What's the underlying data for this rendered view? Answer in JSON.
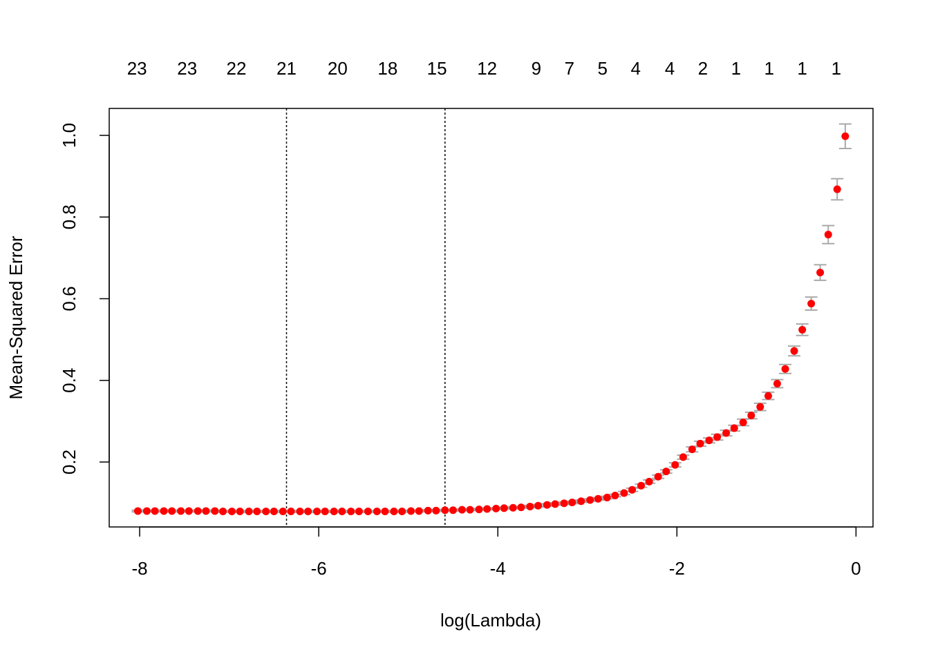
{
  "chart_data": {
    "type": "errorbar_scatter",
    "xlabel": "log(Lambda)",
    "ylabel": "Mean-Squared Error",
    "xlim": [
      -8.34,
      0.19
    ],
    "ylim": [
      0.041,
      1.066
    ],
    "xticks": [
      -8,
      -6,
      -4,
      -2,
      0
    ],
    "yticks": [
      0.2,
      0.4,
      0.6,
      0.8,
      {
        "value": 1,
        "label": "1.0"
      }
    ],
    "top_ticks": [
      {
        "value": -8.03,
        "label": "23"
      },
      {
        "value": -7.47,
        "label": "23"
      },
      {
        "value": -6.92,
        "label": "22"
      },
      {
        "value": -6.36,
        "label": "21"
      },
      {
        "value": -5.79,
        "label": "20"
      },
      {
        "value": -5.23,
        "label": "18"
      },
      {
        "value": -4.68,
        "label": "15"
      },
      {
        "value": -4.12,
        "label": "12"
      },
      {
        "value": -3.57,
        "label": "9"
      },
      {
        "value": -3.2,
        "label": "7"
      },
      {
        "value": -2.83,
        "label": "5"
      },
      {
        "value": -2.46,
        "label": "4"
      },
      {
        "value": -2.08,
        "label": "4"
      },
      {
        "value": -1.71,
        "label": "2"
      },
      {
        "value": -1.34,
        "label": "1"
      },
      {
        "value": -0.97,
        "label": "1"
      },
      {
        "value": -0.6,
        "label": "1"
      },
      {
        "value": -0.22,
        "label": "1"
      }
    ],
    "vlines": [
      -6.36,
      -4.59
    ],
    "color": "#ff0000",
    "error_color": "#a9a9a9",
    "x": [
      -8.02,
      -7.92,
      -7.83,
      -7.73,
      -7.64,
      -7.54,
      -7.45,
      -7.35,
      -7.26,
      -7.16,
      -7.07,
      -6.97,
      -6.88,
      -6.78,
      -6.69,
      -6.59,
      -6.5,
      -6.4,
      -6.31,
      -6.21,
      -6.12,
      -6.02,
      -5.93,
      -5.83,
      -5.74,
      -5.64,
      -5.55,
      -5.45,
      -5.35,
      -5.26,
      -5.16,
      -5.07,
      -4.97,
      -4.88,
      -4.78,
      -4.69,
      -4.59,
      -4.5,
      -4.4,
      -4.31,
      -4.21,
      -4.12,
      -4.02,
      -3.93,
      -3.83,
      -3.74,
      -3.64,
      -3.55,
      -3.45,
      -3.36,
      -3.26,
      -3.17,
      -3.07,
      -2.97,
      -2.88,
      -2.78,
      -2.69,
      -2.59,
      -2.5,
      -2.4,
      -2.31,
      -2.21,
      -2.12,
      -2.02,
      -1.93,
      -1.83,
      -1.74,
      -1.64,
      -1.55,
      -1.45,
      -1.36,
      -1.26,
      -1.17,
      -1.07,
      -0.98,
      -0.88,
      -0.79,
      -0.69,
      -0.6,
      -0.5,
      -0.4,
      -0.31,
      -0.21,
      -0.12
    ],
    "values": [
      0.08,
      0.08,
      0.08,
      0.08,
      0.08,
      0.08,
      0.08,
      0.08,
      0.08,
      0.08,
      0.079,
      0.079,
      0.079,
      0.079,
      0.079,
      0.079,
      0.079,
      0.079,
      0.079,
      0.079,
      0.079,
      0.079,
      0.079,
      0.079,
      0.079,
      0.079,
      0.079,
      0.079,
      0.079,
      0.079,
      0.079,
      0.079,
      0.08,
      0.08,
      0.081,
      0.081,
      0.082,
      0.082,
      0.083,
      0.083,
      0.084,
      0.085,
      0.086,
      0.087,
      0.088,
      0.089,
      0.091,
      0.093,
      0.095,
      0.097,
      0.099,
      0.101,
      0.104,
      0.107,
      0.11,
      0.113,
      0.118,
      0.124,
      0.132,
      0.142,
      0.152,
      0.164,
      0.177,
      0.193,
      0.212,
      0.231,
      0.245,
      0.253,
      0.261,
      0.271,
      0.283,
      0.297,
      0.314,
      0.335,
      0.362,
      0.392,
      0.428,
      0.472,
      0.524,
      0.588,
      0.664,
      0.757,
      0.868,
      0.998
    ],
    "errors": [
      0.002,
      0.002,
      0.002,
      0.002,
      0.002,
      0.002,
      0.002,
      0.002,
      0.002,
      0.002,
      0.002,
      0.002,
      0.002,
      0.002,
      0.002,
      0.002,
      0.002,
      0.002,
      0.002,
      0.002,
      0.002,
      0.002,
      0.002,
      0.002,
      0.002,
      0.002,
      0.002,
      0.002,
      0.002,
      0.002,
      0.002,
      0.002,
      0.002,
      0.002,
      0.002,
      0.002,
      0.002,
      0.002,
      0.002,
      0.002,
      0.002,
      0.002,
      0.002,
      0.002,
      0.002,
      0.002,
      0.003,
      0.003,
      0.003,
      0.003,
      0.003,
      0.003,
      0.003,
      0.003,
      0.003,
      0.003,
      0.003,
      0.004,
      0.004,
      0.004,
      0.004,
      0.004,
      0.004,
      0.005,
      0.005,
      0.006,
      0.006,
      0.006,
      0.007,
      0.007,
      0.007,
      0.008,
      0.008,
      0.009,
      0.009,
      0.01,
      0.011,
      0.012,
      0.014,
      0.016,
      0.019,
      0.022,
      0.026,
      0.03
    ]
  }
}
